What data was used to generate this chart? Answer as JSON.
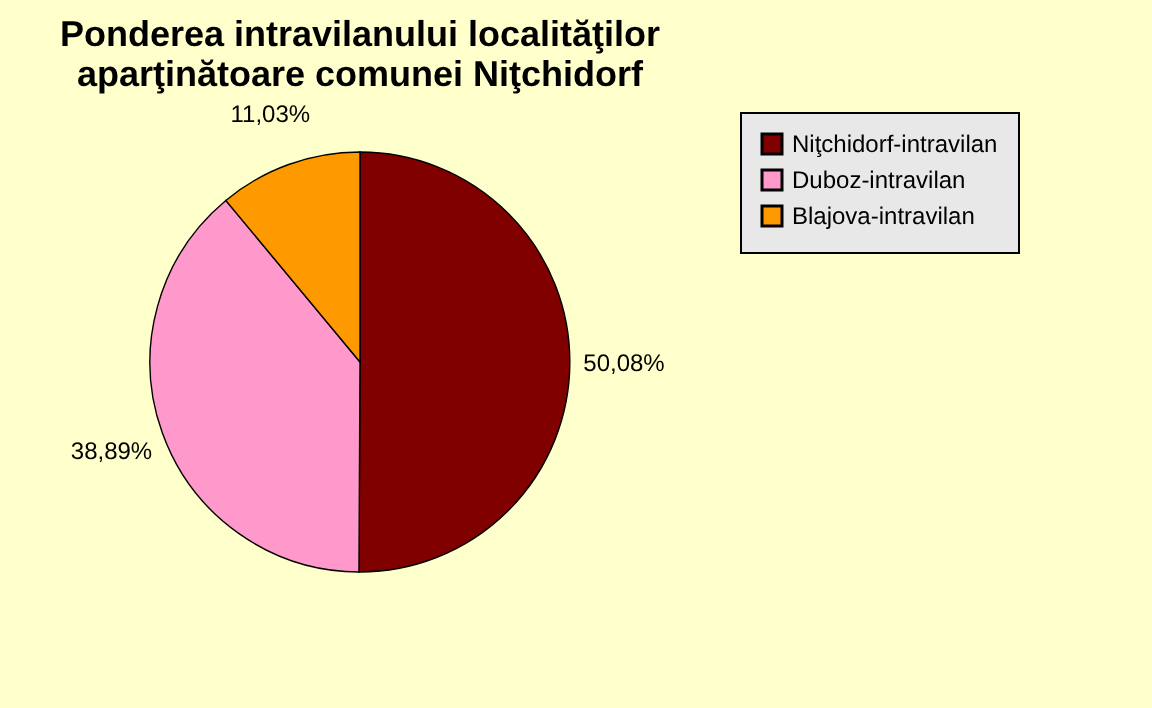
{
  "chart_data": {
    "type": "pie",
    "title": "Ponderea intravilanului localităţilor aparţinătoare comunei Niţchidorf",
    "categories": [
      "Niţchidorf-intravilan",
      "Duboz-intravilan",
      "Blajova-intravilan"
    ],
    "values": [
      50.08,
      38.89,
      11.03
    ],
    "colors": [
      "#800000",
      "#ff99cc",
      "#ff9900"
    ],
    "value_labels": [
      "50,08%",
      "38,89%",
      "11,03%"
    ],
    "legend": "right"
  }
}
